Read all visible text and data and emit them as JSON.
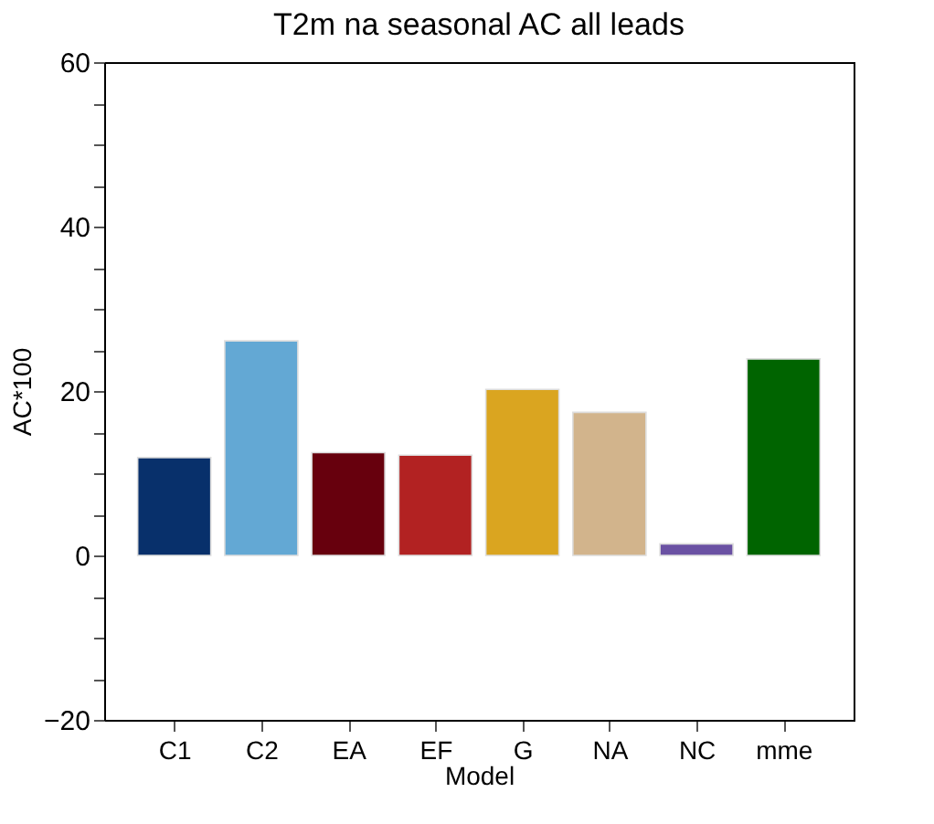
{
  "chart_data": {
    "type": "bar",
    "title": "T2m na seasonal AC all leads",
    "xlabel": "Model",
    "ylabel": "AC*100",
    "categories": [
      "C1",
      "C2",
      "EA",
      "EF",
      "G",
      "NA",
      "NC",
      "mme"
    ],
    "values": [
      11.9,
      26.1,
      12.5,
      12.2,
      20.2,
      17.4,
      1.4,
      23.9
    ],
    "colors": [
      "#08306b",
      "#63a8d4",
      "#67000d",
      "#b22222",
      "#daa520",
      "#d2b48c",
      "#6a51a3",
      "#006400"
    ],
    "ylim": [
      -20,
      60
    ],
    "yticks": [
      -20,
      {
        "value": -15,
        "label": null
      },
      {
        "value": -10,
        "label": null
      },
      {
        "value": -5,
        "label": null
      },
      0,
      {
        "value": 5,
        "label": null
      },
      {
        "value": 10,
        "label": null
      },
      {
        "value": 15,
        "label": null
      },
      20,
      {
        "value": 25,
        "label": null
      },
      {
        "value": 30,
        "label": null
      },
      {
        "value": 35,
        "label": null
      },
      40,
      {
        "value": 45,
        "label": null
      },
      {
        "value": 50,
        "label": null
      },
      {
        "value": 55,
        "label": null
      },
      60
    ]
  }
}
